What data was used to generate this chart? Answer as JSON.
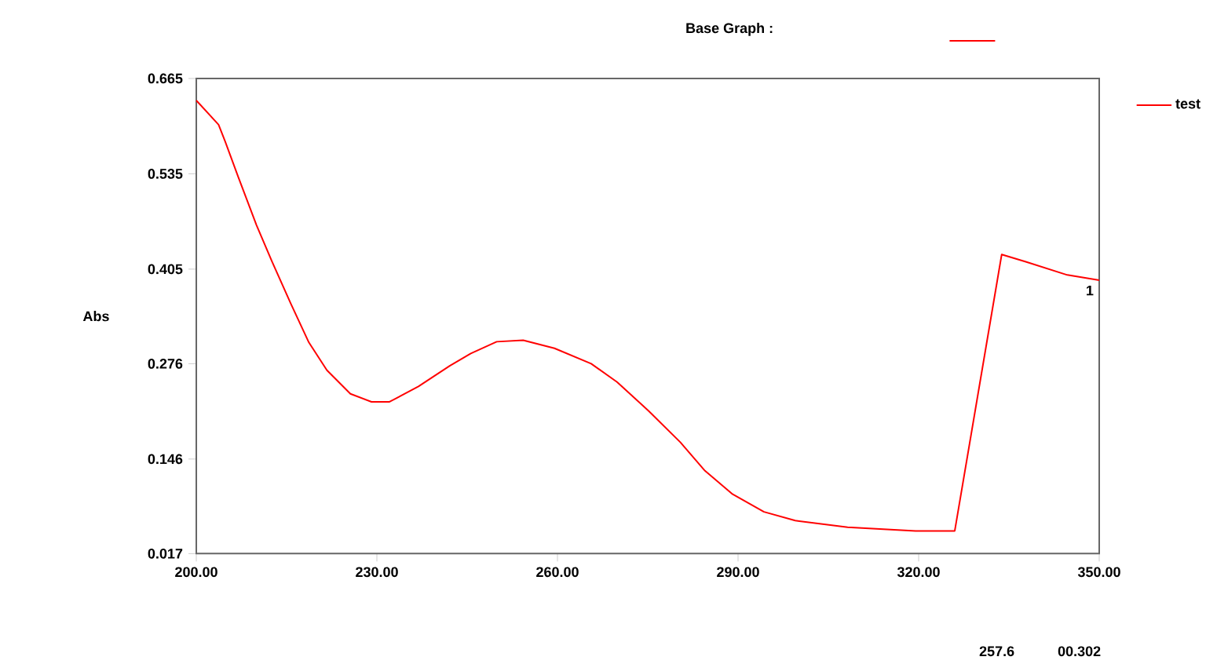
{
  "chart_data": {
    "type": "line",
    "ylabel": "Abs",
    "legend": "top right",
    "grid": false,
    "marker": "none",
    "line_style": "solid",
    "annotations": [
      "Base Graph :",
      "257.6",
      "00.302",
      {
        "text": "1",
        "x": 350,
        "y": 0.39
      }
    ],
    "xlim": [
      200,
      350
    ],
    "ylim": [
      0.017,
      0.665
    ],
    "xticks": [
      {
        "value": 200,
        "label": "200.00"
      },
      {
        "value": 230,
        "label": "230.00"
      },
      {
        "value": 260,
        "label": "260.00"
      },
      {
        "value": 290,
        "label": "290.00"
      },
      {
        "value": 320,
        "label": "320.00"
      },
      {
        "value": 350,
        "label": "350.00"
      }
    ],
    "yticks": [
      0.017,
      0.146,
      0.276,
      0.405,
      0.535,
      0.665
    ],
    "series": [
      {
        "name": "test",
        "color": "#ff0000",
        "x": [
          200,
          203.7,
          204.8,
          207.0,
          210.0,
          212.6,
          215.7,
          218.7,
          221.7,
          225.6,
          229.1,
          232.1,
          236.9,
          242.1,
          245.6,
          249.9,
          254.3,
          259.5,
          265.6,
          269.9,
          275.1,
          280.4,
          284.5,
          289.1,
          294.3,
          299.5,
          308.2,
          319.5,
          326.0,
          333.8,
          337.8,
          344.7,
          350
        ],
        "values": [
          0.635,
          0.602,
          0.579,
          0.53,
          0.465,
          0.415,
          0.358,
          0.305,
          0.267,
          0.235,
          0.224,
          0.224,
          0.245,
          0.273,
          0.29,
          0.306,
          0.308,
          0.297,
          0.276,
          0.251,
          0.212,
          0.169,
          0.13,
          0.098,
          0.074,
          0.062,
          0.053,
          0.048,
          0.048,
          0.425,
          0.415,
          0.397,
          0.39
        ]
      }
    ]
  }
}
